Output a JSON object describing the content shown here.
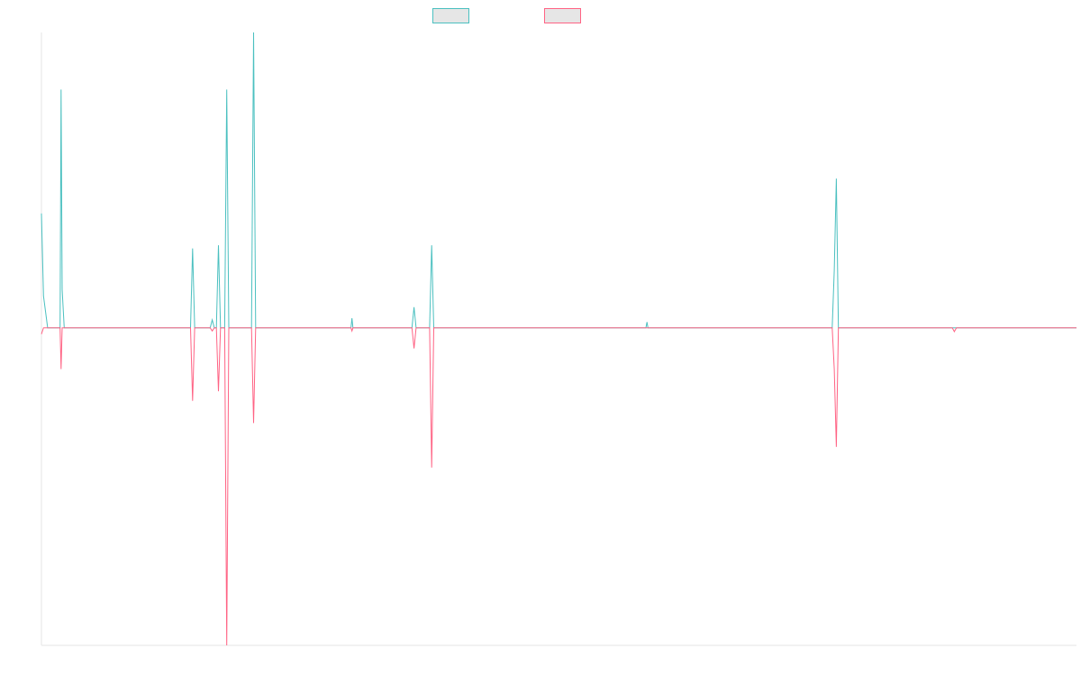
{
  "chart_data": {
    "type": "line",
    "title": "",
    "xlabel": "",
    "ylabel": "",
    "grid": false,
    "legend_position": "top-center",
    "x_range": [
      0,
      1000
    ],
    "ylim": [
      -10,
      9.3
    ],
    "series": [
      {
        "color": "#4bc0c0",
        "points": [
          [
            0,
            3.6
          ],
          [
            2,
            1.0
          ],
          [
            4,
            0.5
          ],
          [
            6,
            0
          ],
          [
            18,
            0
          ],
          [
            19,
            7.5
          ],
          [
            20,
            1.2
          ],
          [
            22,
            0
          ],
          [
            30,
            0
          ],
          [
            144,
            0
          ],
          [
            146,
            2.5
          ],
          [
            148,
            0
          ],
          [
            163,
            0
          ],
          [
            165,
            0.25
          ],
          [
            167,
            0
          ],
          [
            169,
            0
          ],
          [
            171,
            2.6
          ],
          [
            173,
            0
          ],
          [
            177,
            0
          ],
          [
            179,
            7.5
          ],
          [
            181,
            0
          ],
          [
            203,
            0
          ],
          [
            205,
            9.3
          ],
          [
            207,
            0
          ],
          [
            299,
            0
          ],
          [
            300,
            0.3
          ],
          [
            301,
            0
          ],
          [
            358,
            0
          ],
          [
            360,
            0.65
          ],
          [
            362,
            0
          ],
          [
            375,
            0
          ],
          [
            377,
            2.6
          ],
          [
            379,
            0
          ],
          [
            584,
            0
          ],
          [
            585,
            0.18
          ],
          [
            586,
            0
          ],
          [
            764,
            0
          ],
          [
            766,
            1.8
          ],
          [
            768,
            4.7
          ],
          [
            770,
            0
          ],
          [
            1000,
            0
          ]
        ]
      },
      {
        "color": "#ff6384",
        "points": [
          [
            0,
            -0.2
          ],
          [
            2,
            0
          ],
          [
            4,
            0
          ],
          [
            18,
            0
          ],
          [
            19,
            -1.3
          ],
          [
            20,
            0
          ],
          [
            30,
            0
          ],
          [
            144,
            0
          ],
          [
            146,
            -2.3
          ],
          [
            148,
            0
          ],
          [
            163,
            0
          ],
          [
            165,
            -0.1
          ],
          [
            167,
            0
          ],
          [
            169,
            0
          ],
          [
            171,
            -2.0
          ],
          [
            173,
            0
          ],
          [
            177,
            0
          ],
          [
            179,
            -10
          ],
          [
            181,
            0
          ],
          [
            203,
            0
          ],
          [
            205,
            -3.0
          ],
          [
            207,
            0
          ],
          [
            299,
            0
          ],
          [
            300,
            -0.1
          ],
          [
            301,
            0
          ],
          [
            358,
            0
          ],
          [
            360,
            -0.65
          ],
          [
            362,
            0
          ],
          [
            375,
            0
          ],
          [
            377,
            -4.4
          ],
          [
            379,
            0
          ],
          [
            764,
            0
          ],
          [
            766,
            -1.3
          ],
          [
            768,
            -3.75
          ],
          [
            770,
            0
          ],
          [
            880,
            0
          ],
          [
            882,
            -0.12
          ],
          [
            884,
            0
          ],
          [
            1000,
            0
          ]
        ]
      }
    ]
  }
}
